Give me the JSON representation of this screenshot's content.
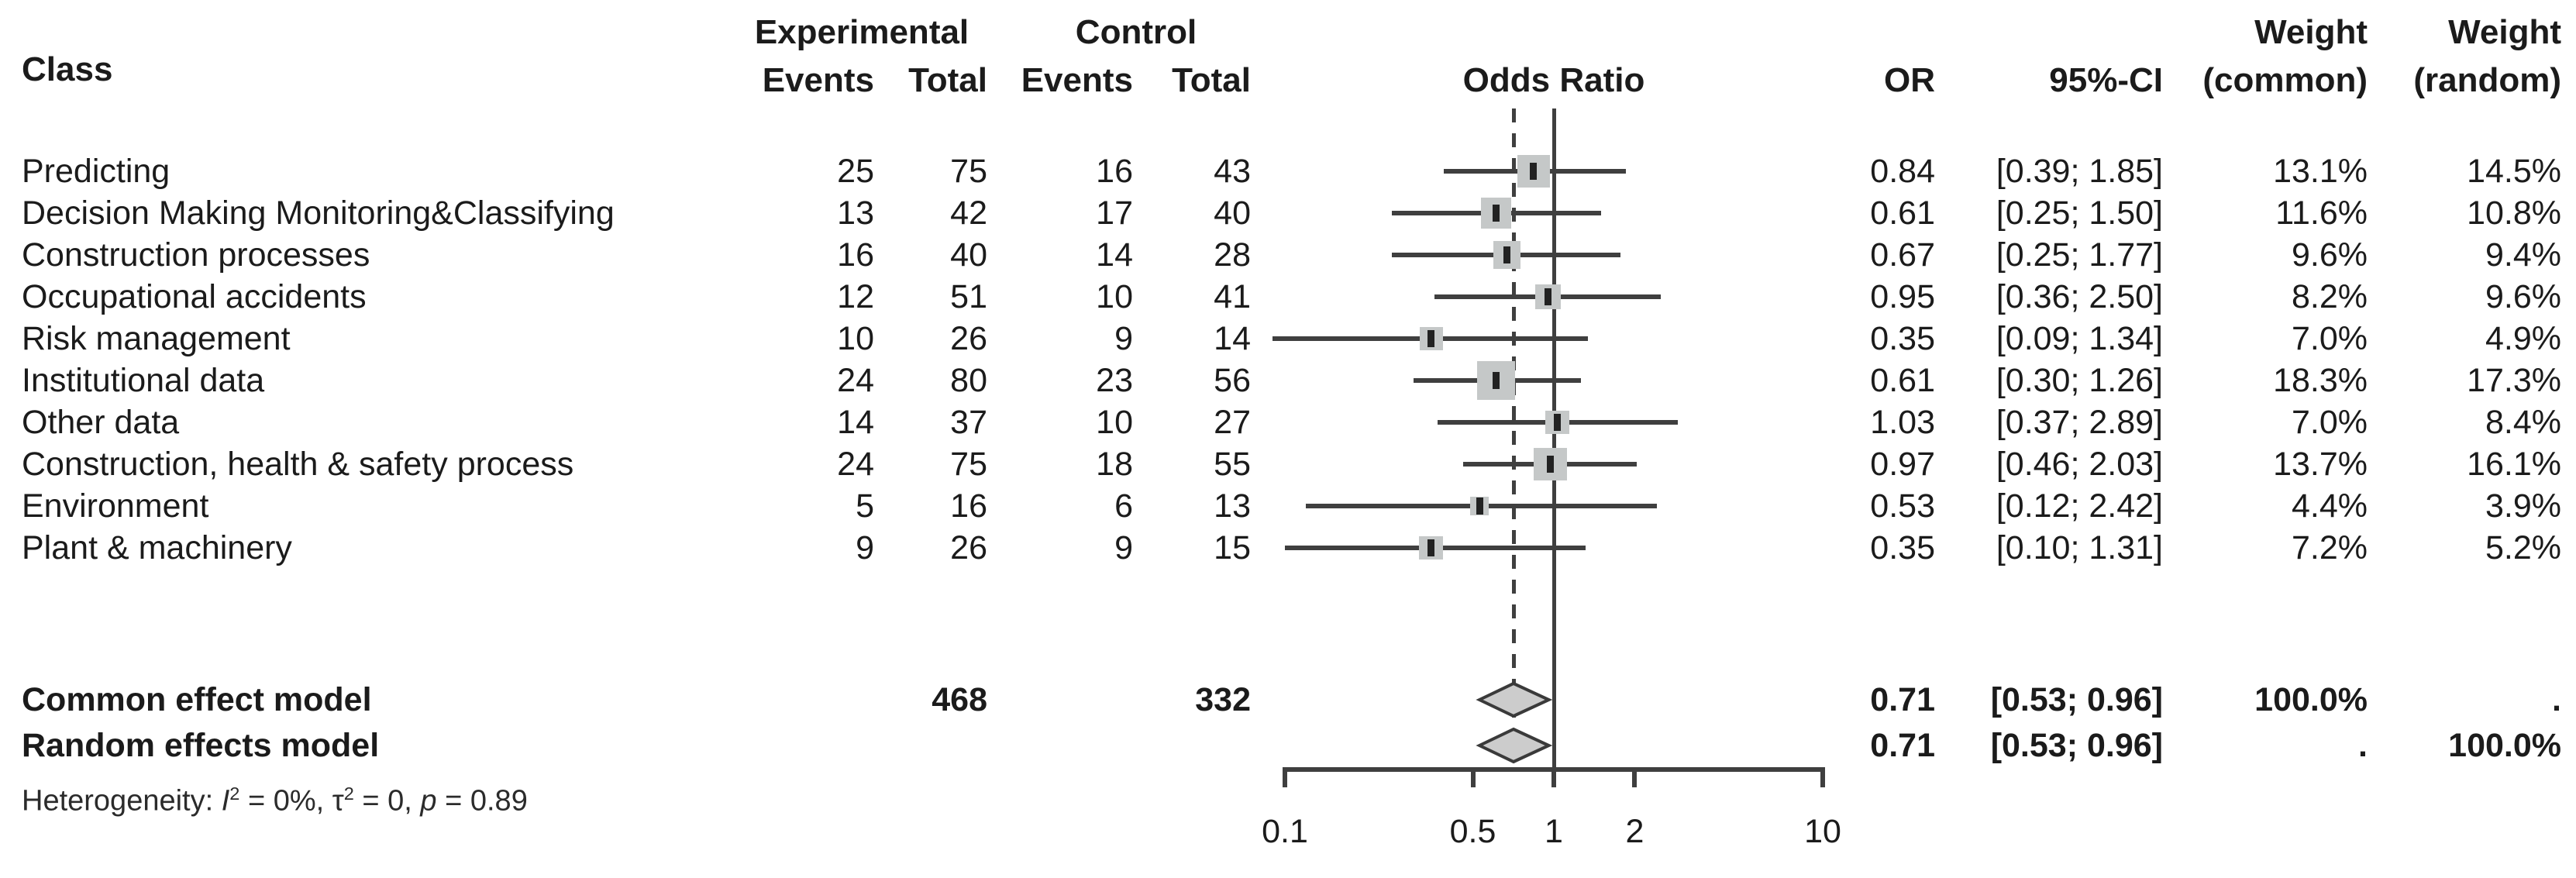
{
  "header": {
    "class": "Class",
    "group_experimental": "Experimental",
    "group_control": "Control",
    "events": "Events",
    "total": "Total",
    "plot_title": "Odds Ratio",
    "or": "OR",
    "ci": "95%-CI",
    "weight": "Weight",
    "weight_common": "(common)",
    "weight_random": "(random)"
  },
  "heterogeneity": {
    "label": "Heterogeneity: ",
    "i_sym": "I",
    "i_exp": "2",
    "i_eq": " = 0%, ",
    "tau_sym": "τ",
    "tau_exp": "2",
    "tau_eq": " = 0, ",
    "p_sym": "p",
    "p_eq": " = 0.89"
  },
  "chart_data": {
    "type": "forest",
    "scale": "log10",
    "xlim": [
      0.1,
      10
    ],
    "ticks": [
      0.1,
      0.5,
      1,
      2,
      10
    ],
    "tick_labels": [
      "0.1",
      "0.5",
      "1",
      "2",
      "10"
    ],
    "reference_line": 1,
    "dashed_line": 0.71,
    "studies": [
      {
        "class": "Predicting",
        "exp_events": "25",
        "exp_total": "75",
        "ctrl_events": "16",
        "ctrl_total": "43",
        "or": 0.84,
        "ci_low": 0.39,
        "ci_high": 1.85,
        "or_text": "0.84",
        "ci_text": "[0.39; 1.85]",
        "w_common": "13.1%",
        "w_random": "14.5%",
        "w_common_val": 13.1
      },
      {
        "class": "Decision Making Monitoring&Classifying",
        "exp_events": "13",
        "exp_total": "42",
        "ctrl_events": "17",
        "ctrl_total": "40",
        "or": 0.61,
        "ci_low": 0.25,
        "ci_high": 1.5,
        "or_text": "0.61",
        "ci_text": "[0.25; 1.50]",
        "w_common": "11.6%",
        "w_random": "10.8%",
        "w_common_val": 11.6
      },
      {
        "class": "Construction processes",
        "exp_events": "16",
        "exp_total": "40",
        "ctrl_events": "14",
        "ctrl_total": "28",
        "or": 0.67,
        "ci_low": 0.25,
        "ci_high": 1.77,
        "or_text": "0.67",
        "ci_text": "[0.25; 1.77]",
        "w_common": "9.6%",
        "w_random": "9.4%",
        "w_common_val": 9.6
      },
      {
        "class": "Occupational accidents",
        "exp_events": "12",
        "exp_total": "51",
        "ctrl_events": "10",
        "ctrl_total": "41",
        "or": 0.95,
        "ci_low": 0.36,
        "ci_high": 2.5,
        "or_text": "0.95",
        "ci_text": "[0.36; 2.50]",
        "w_common": "8.2%",
        "w_random": "9.6%",
        "w_common_val": 8.2
      },
      {
        "class": "Risk management",
        "exp_events": "10",
        "exp_total": "26",
        "ctrl_events": "9",
        "ctrl_total": "14",
        "or": 0.35,
        "ci_low": 0.09,
        "ci_high": 1.34,
        "or_text": "0.35",
        "ci_text": "[0.09; 1.34]",
        "w_common": "7.0%",
        "w_random": "4.9%",
        "w_common_val": 7.0
      },
      {
        "class": "Institutional data",
        "exp_events": "24",
        "exp_total": "80",
        "ctrl_events": "23",
        "ctrl_total": "56",
        "or": 0.61,
        "ci_low": 0.3,
        "ci_high": 1.26,
        "or_text": "0.61",
        "ci_text": "[0.30; 1.26]",
        "w_common": "18.3%",
        "w_random": "17.3%",
        "w_common_val": 18.3
      },
      {
        "class": "Other data",
        "exp_events": "14",
        "exp_total": "37",
        "ctrl_events": "10",
        "ctrl_total": "27",
        "or": 1.03,
        "ci_low": 0.37,
        "ci_high": 2.89,
        "or_text": "1.03",
        "ci_text": "[0.37; 2.89]",
        "w_common": "7.0%",
        "w_random": "8.4%",
        "w_common_val": 7.0
      },
      {
        "class": "Construction, health & safety process",
        "exp_events": "24",
        "exp_total": "75",
        "ctrl_events": "18",
        "ctrl_total": "55",
        "or": 0.97,
        "ci_low": 0.46,
        "ci_high": 2.03,
        "or_text": "0.97",
        "ci_text": "[0.46; 2.03]",
        "w_common": "13.7%",
        "w_random": "16.1%",
        "w_common_val": 13.7
      },
      {
        "class": "Environment",
        "exp_events": "5",
        "exp_total": "16",
        "ctrl_events": "6",
        "ctrl_total": "13",
        "or": 0.53,
        "ci_low": 0.12,
        "ci_high": 2.42,
        "or_text": "0.53",
        "ci_text": "[0.12; 2.42]",
        "w_common": "4.4%",
        "w_random": "3.9%",
        "w_common_val": 4.4
      },
      {
        "class": "Plant & machinery",
        "exp_events": "9",
        "exp_total": "26",
        "ctrl_events": "9",
        "ctrl_total": "15",
        "or": 0.35,
        "ci_low": 0.1,
        "ci_high": 1.31,
        "or_text": "0.35",
        "ci_text": "[0.10; 1.31]",
        "w_common": "7.2%",
        "w_random": "5.2%",
        "w_common_val": 7.2
      }
    ],
    "summaries": [
      {
        "label": "Common effect model",
        "exp_total": "468",
        "ctrl_total": "332",
        "or": 0.71,
        "ci_low": 0.53,
        "ci_high": 0.96,
        "or_text": "0.71",
        "ci_text": "[0.53; 0.96]",
        "w_common": "100.0%",
        "w_random": "."
      },
      {
        "label": "Random effects model",
        "exp_total": "",
        "ctrl_total": "",
        "or": 0.71,
        "ci_low": 0.53,
        "ci_high": 0.96,
        "or_text": "0.71",
        "ci_text": "[0.53; 0.96]",
        "w_common": ".",
        "w_random": "100.0%"
      }
    ]
  }
}
